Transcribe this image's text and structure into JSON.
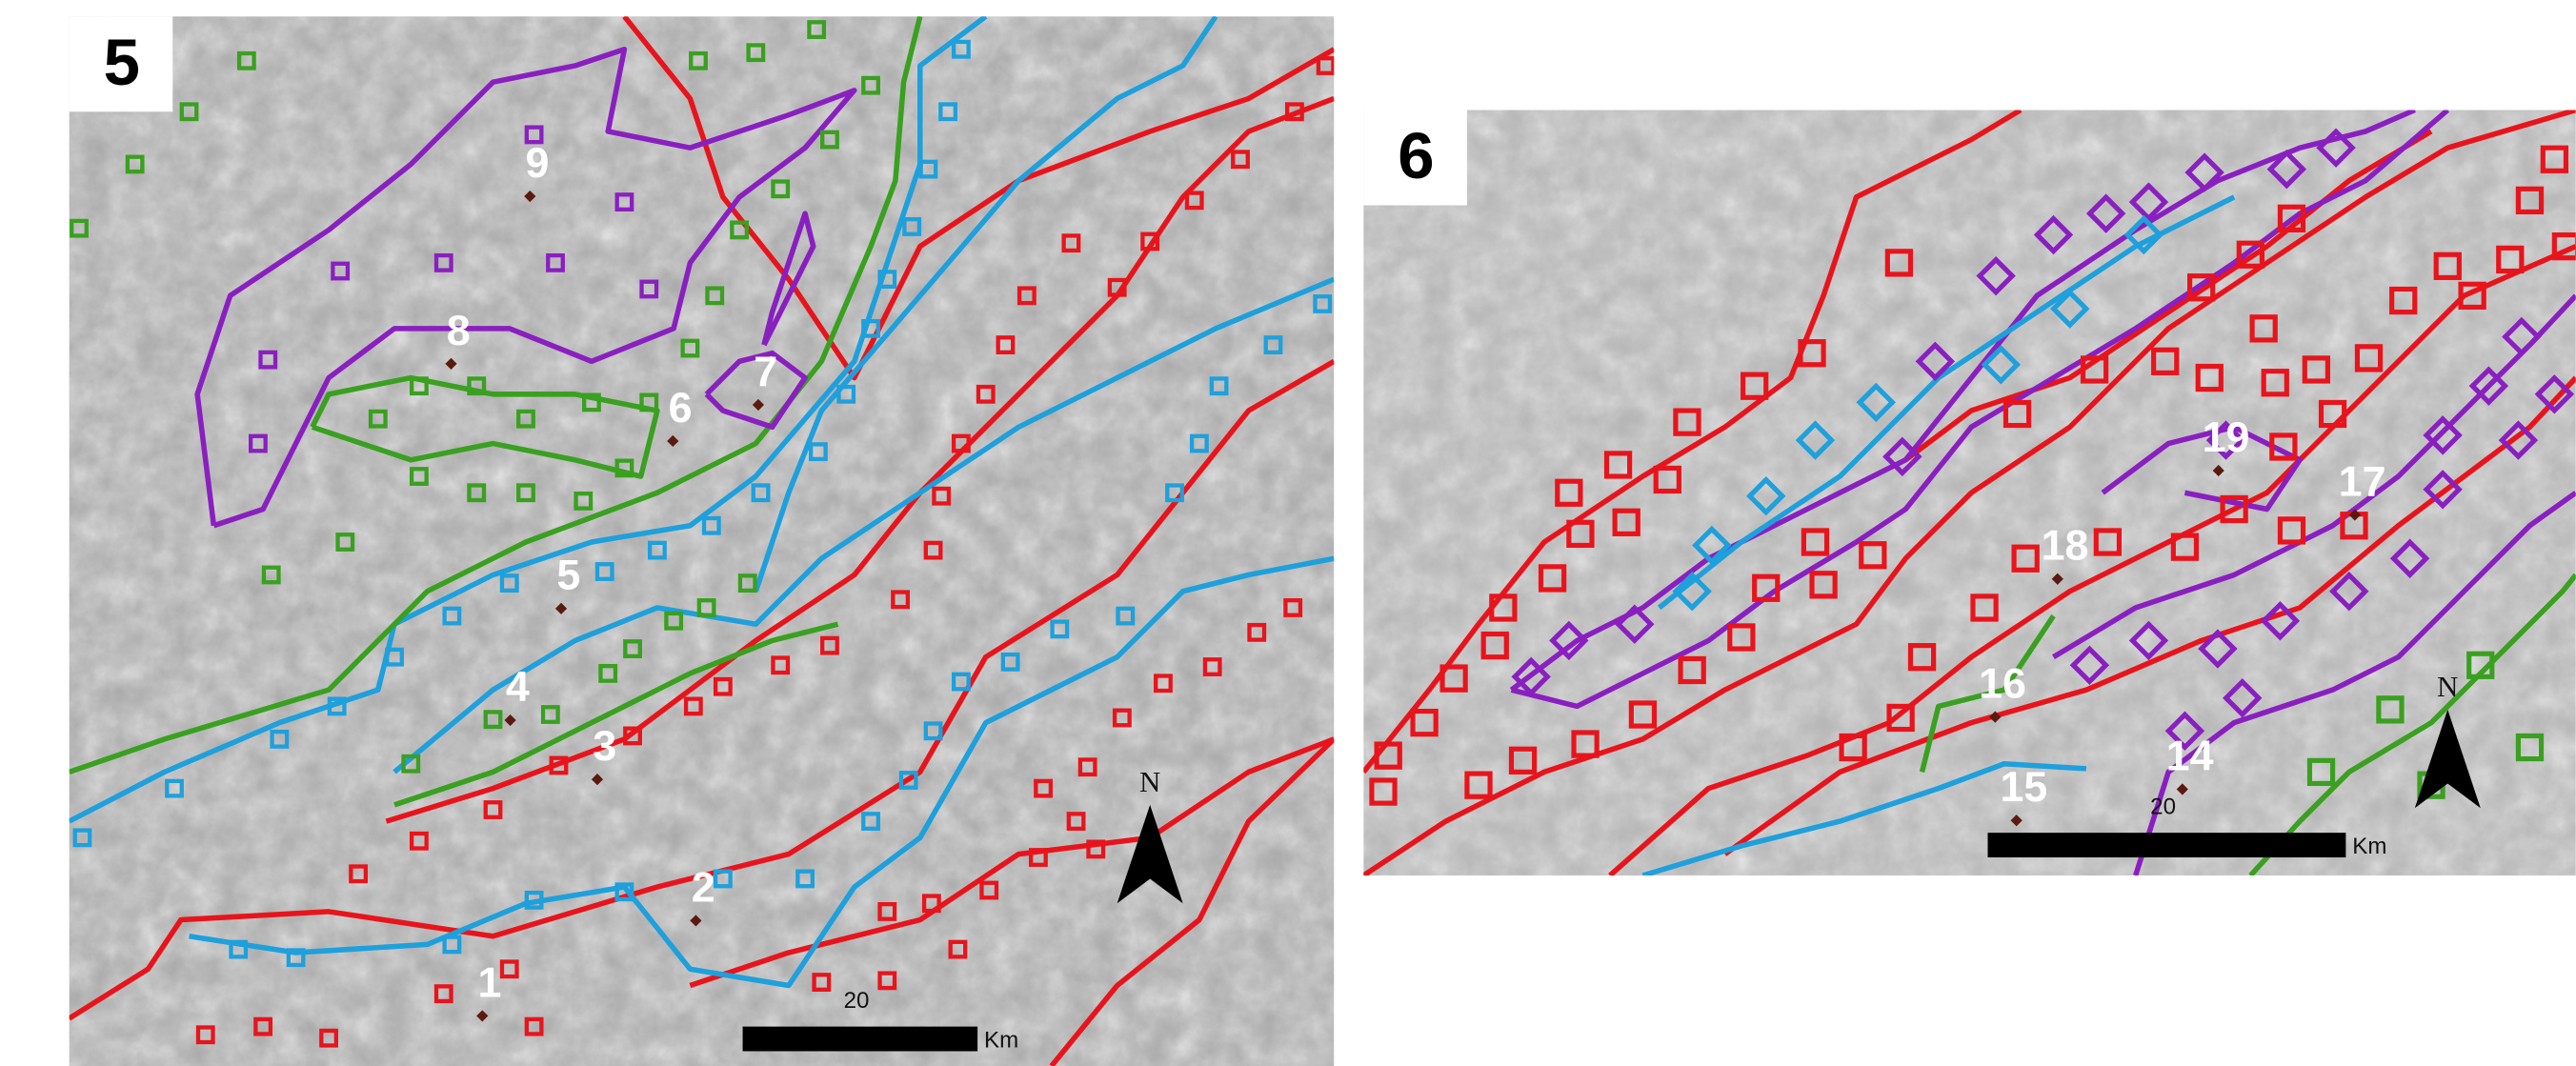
{
  "panels": [
    {
      "label": "5",
      "sites": [
        "1",
        "2",
        "3",
        "4",
        "5",
        "6",
        "7",
        "8",
        "9"
      ],
      "scale": {
        "value": "20",
        "unit": "Km"
      },
      "north": "N"
    },
    {
      "label": "6",
      "sites": [
        "14",
        "15",
        "16",
        "17",
        "18",
        "19"
      ],
      "scale": {
        "value": "20",
        "unit": "Km"
      },
      "north": "N"
    }
  ]
}
